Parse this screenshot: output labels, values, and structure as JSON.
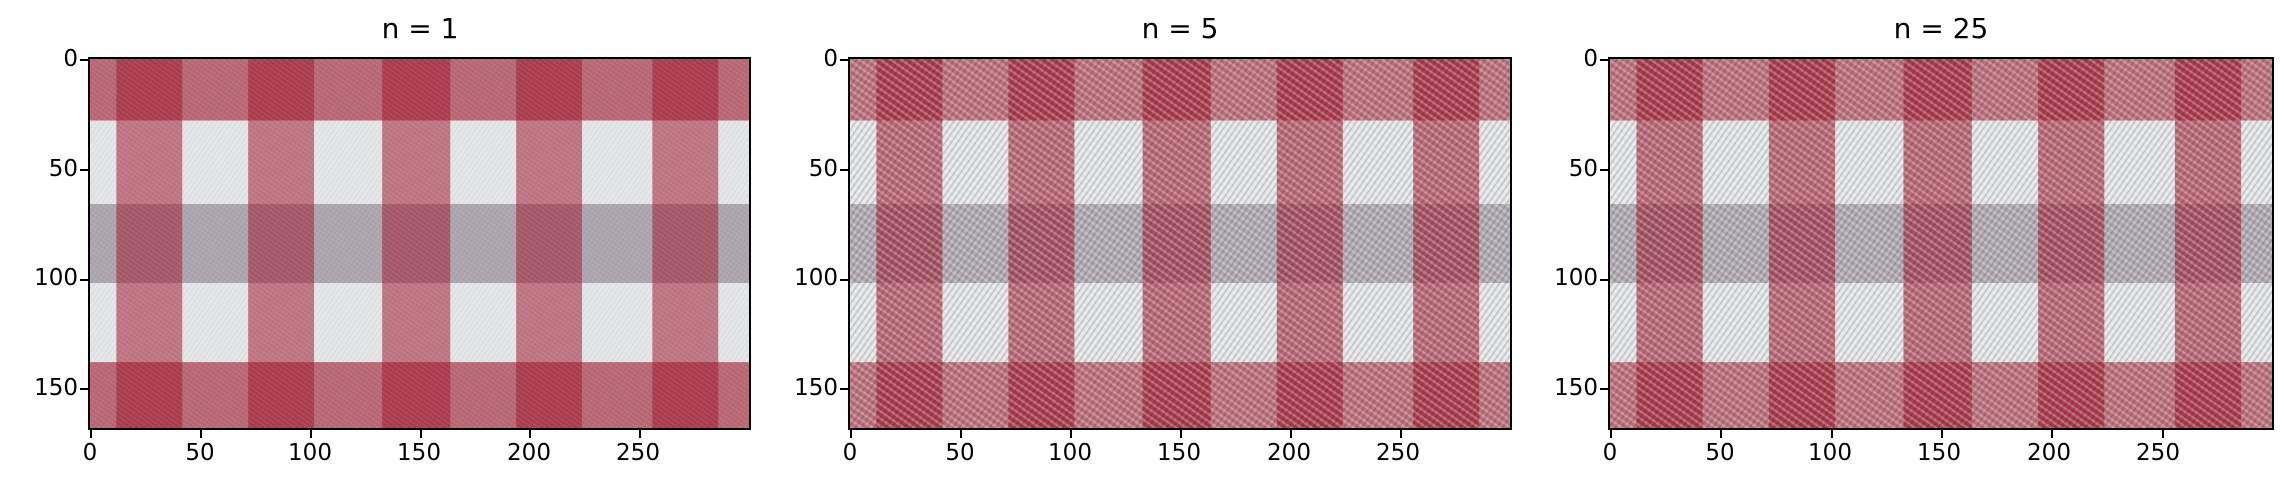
{
  "palette": {
    "red": "#a01a30",
    "white": "#e4e6e8",
    "grey": "#8a7e8c"
  },
  "panels": [
    {
      "title": "n = 1",
      "style": "blur",
      "x_ticks": [
        "0",
        "50",
        "100",
        "150",
        "200",
        "250"
      ],
      "y_ticks": [
        "0",
        "50",
        "100",
        "150"
      ]
    },
    {
      "title": "n = 5",
      "style": "weave",
      "x_ticks": [
        "0",
        "50",
        "100",
        "150",
        "200",
        "250"
      ],
      "y_ticks": [
        "0",
        "50",
        "100",
        "150"
      ]
    },
    {
      "title": "n = 25",
      "style": "weave-fine",
      "x_ticks": [
        "0",
        "50",
        "100",
        "150",
        "200",
        "250"
      ],
      "y_ticks": [
        "0",
        "50",
        "100",
        "150"
      ]
    }
  ]
}
